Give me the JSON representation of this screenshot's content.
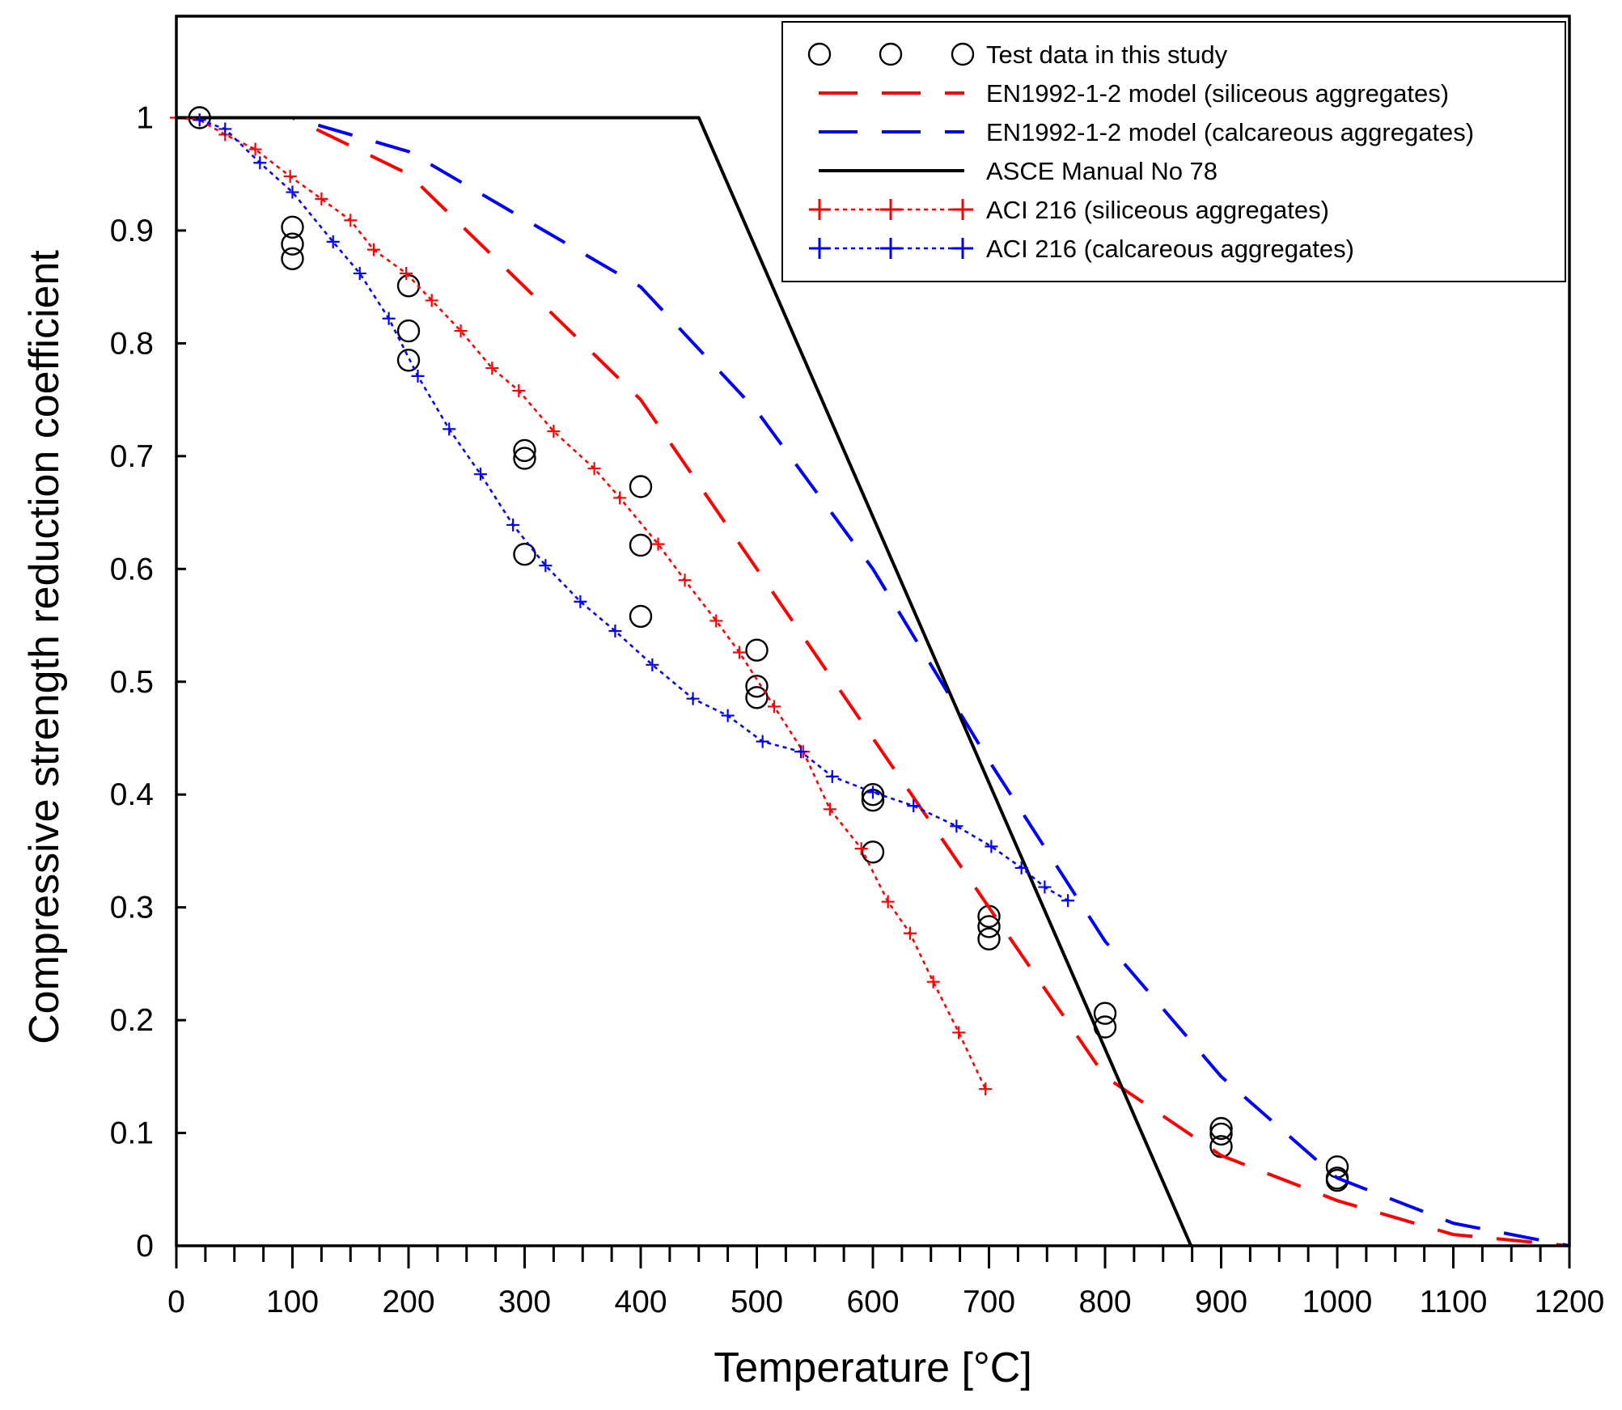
{
  "chart_data": {
    "type": "line",
    "title": "",
    "xlabel": "Temperature [°C]",
    "ylabel": "Compressive strength reduction coefficient",
    "xlim": [
      0,
      1200
    ],
    "ylim": [
      0,
      1.09
    ],
    "x_ticks": [
      0,
      100,
      200,
      300,
      400,
      500,
      600,
      700,
      800,
      900,
      1000,
      1100,
      1200
    ],
    "y_ticks": [
      0,
      0.1,
      0.2,
      0.3,
      0.4,
      0.5,
      0.6,
      0.7,
      0.8,
      0.9,
      1
    ],
    "x_tick_labels": [
      "0",
      "100",
      "200",
      "300",
      "400",
      "500",
      "600",
      "700",
      "800",
      "900",
      "1000",
      "1100",
      "1200"
    ],
    "y_tick_labels": [
      "0",
      "0.1",
      "0.2",
      "0.3",
      "0.4",
      "0.5",
      "0.6",
      "0.7",
      "0.8",
      "0.9",
      "1"
    ],
    "grid": false,
    "legend_position": "top-right",
    "series": [
      {
        "name": "Test data in this study",
        "style": "markers-circle",
        "color": "#000000",
        "points": [
          [
            20,
            1.0
          ],
          [
            100,
            0.903
          ],
          [
            100,
            0.888
          ],
          [
            100,
            0.875
          ],
          [
            200,
            0.851
          ],
          [
            200,
            0.811
          ],
          [
            200,
            0.785
          ],
          [
            300,
            0.705
          ],
          [
            300,
            0.698
          ],
          [
            300,
            0.613
          ],
          [
            400,
            0.673
          ],
          [
            400,
            0.621
          ],
          [
            400,
            0.558
          ],
          [
            500,
            0.528
          ],
          [
            500,
            0.496
          ],
          [
            500,
            0.486
          ],
          [
            600,
            0.4
          ],
          [
            600,
            0.395
          ],
          [
            600,
            0.349
          ],
          [
            700,
            0.292
          ],
          [
            700,
            0.283
          ],
          [
            700,
            0.272
          ],
          [
            800,
            0.206
          ],
          [
            800,
            0.194
          ],
          [
            900,
            0.104
          ],
          [
            900,
            0.099
          ],
          [
            900,
            0.088
          ],
          [
            1000,
            0.07
          ],
          [
            1000,
            0.06
          ],
          [
            1000,
            0.058
          ]
        ]
      },
      {
        "name": "EN1992-1-2 model (siliceous aggregates)",
        "style": "long-dash",
        "color": "#ff0000",
        "points": [
          [
            20,
            1.0
          ],
          [
            100,
            1.0
          ],
          [
            200,
            0.95
          ],
          [
            300,
            0.85
          ],
          [
            400,
            0.75
          ],
          [
            500,
            0.6
          ],
          [
            600,
            0.45
          ],
          [
            700,
            0.3
          ],
          [
            800,
            0.15
          ],
          [
            900,
            0.08
          ],
          [
            1000,
            0.04
          ],
          [
            1100,
            0.01
          ],
          [
            1200,
            0.0
          ]
        ]
      },
      {
        "name": "EN1992-1-2 model (calcareous aggregates)",
        "style": "long-dash",
        "color": "#0000ff",
        "points": [
          [
            20,
            1.0
          ],
          [
            100,
            1.0
          ],
          [
            200,
            0.97
          ],
          [
            300,
            0.91
          ],
          [
            400,
            0.85
          ],
          [
            500,
            0.74
          ],
          [
            600,
            0.6
          ],
          [
            700,
            0.43
          ],
          [
            800,
            0.27
          ],
          [
            900,
            0.15
          ],
          [
            1000,
            0.06
          ],
          [
            1100,
            0.02
          ],
          [
            1200,
            0.0
          ]
        ]
      },
      {
        "name": "ASCE Manual No 78",
        "style": "solid",
        "color": "#000000",
        "points": [
          [
            0,
            1.0
          ],
          [
            450,
            1.0
          ],
          [
            874,
            0.0
          ]
        ]
      },
      {
        "name": "ACI 216 (siliceous aggregates)",
        "style": "dotted-plus",
        "color": "#ff0000",
        "points": [
          [
            0,
            1.0
          ],
          [
            20,
            0.998
          ],
          [
            42,
            0.985
          ],
          [
            68,
            0.972
          ],
          [
            98,
            0.948
          ],
          [
            125,
            0.928
          ],
          [
            150,
            0.909
          ],
          [
            170,
            0.883
          ],
          [
            198,
            0.862
          ],
          [
            220,
            0.838
          ],
          [
            245,
            0.811
          ],
          [
            272,
            0.778
          ],
          [
            295,
            0.758
          ],
          [
            325,
            0.722
          ],
          [
            360,
            0.689
          ],
          [
            382,
            0.663
          ],
          [
            415,
            0.622
          ],
          [
            438,
            0.59
          ],
          [
            465,
            0.554
          ],
          [
            485,
            0.526
          ],
          [
            515,
            0.478
          ],
          [
            540,
            0.438
          ],
          [
            563,
            0.387
          ],
          [
            590,
            0.352
          ],
          [
            613,
            0.305
          ],
          [
            632,
            0.277
          ],
          [
            652,
            0.234
          ],
          [
            674,
            0.189
          ],
          [
            697,
            0.139
          ]
        ]
      },
      {
        "name": "ACI 216 (calcareous aggregates)",
        "style": "dotted-plus",
        "color": "#0000ff",
        "points": [
          [
            20,
            0.998
          ],
          [
            42,
            0.99
          ],
          [
            72,
            0.96
          ],
          [
            100,
            0.934
          ],
          [
            135,
            0.89
          ],
          [
            158,
            0.862
          ],
          [
            183,
            0.822
          ],
          [
            208,
            0.771
          ],
          [
            235,
            0.724
          ],
          [
            262,
            0.684
          ],
          [
            290,
            0.639
          ],
          [
            318,
            0.603
          ],
          [
            348,
            0.571
          ],
          [
            378,
            0.545
          ],
          [
            410,
            0.515
          ],
          [
            445,
            0.485
          ],
          [
            475,
            0.47
          ],
          [
            505,
            0.447
          ],
          [
            538,
            0.438
          ],
          [
            565,
            0.416
          ],
          [
            600,
            0.402
          ],
          [
            635,
            0.39
          ],
          [
            672,
            0.372
          ],
          [
            702,
            0.354
          ],
          [
            728,
            0.335
          ],
          [
            748,
            0.318
          ],
          [
            768,
            0.306
          ]
        ]
      }
    ]
  }
}
